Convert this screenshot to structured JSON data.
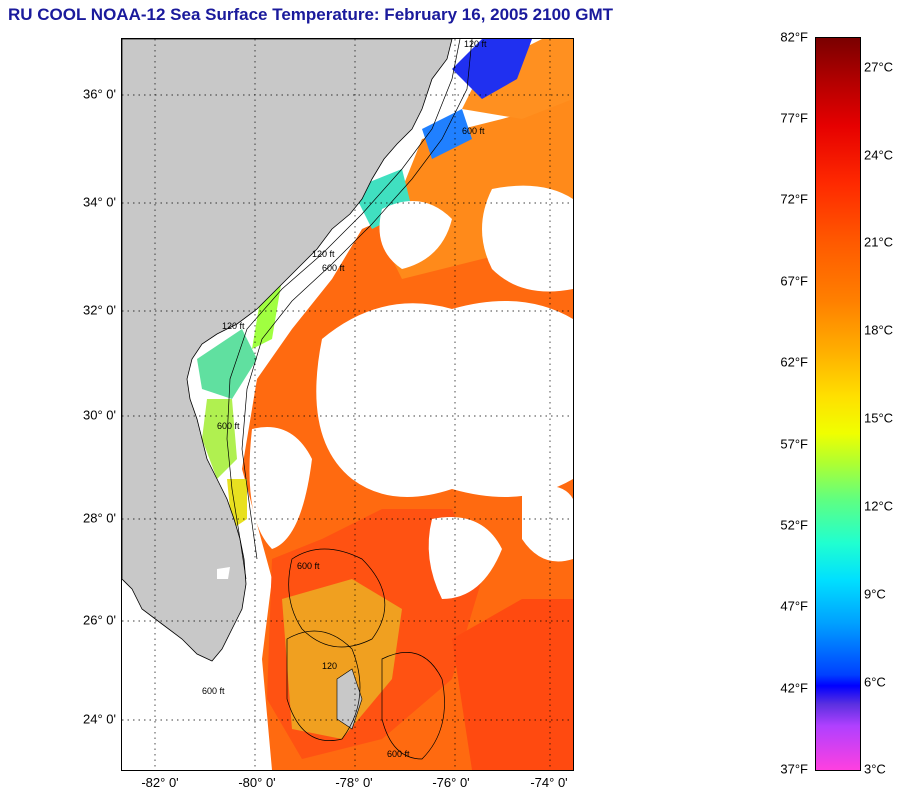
{
  "title": "RU COOL  NOAA-12  Sea Surface Temperature:  February 16, 2005 2100 GMT",
  "map": {
    "lat_labels": [
      "36° 0'",
      "34° 0'",
      "32° 0'",
      "30° 0'",
      "28° 0'",
      "26° 0'",
      "24° 0'"
    ],
    "lon_labels": [
      "-82° 0'",
      "-80° 0'",
      "-78° 0'",
      "-76° 0'",
      "-74° 0'"
    ],
    "contour_labels": [
      "120 ft",
      "600 ft",
      "120 ft",
      "600 ft",
      "120 ft",
      "600 ft",
      "600 ft",
      "120",
      "600 ft",
      "600 ft"
    ],
    "colors": {
      "land": "#c8c8c8",
      "cloud": "#ffffff",
      "coast": "#000000",
      "grid": "#000000"
    }
  },
  "colorbar": {
    "fahrenheit_labels": [
      "82°F",
      "77°F",
      "72°F",
      "67°F",
      "62°F",
      "57°F",
      "52°F",
      "47°F",
      "42°F",
      "37°F"
    ],
    "celsius_labels": [
      "27°C",
      "24°C",
      "21°C",
      "18°C",
      "15°C",
      "12°C",
      "9°C",
      "6°C",
      "3°C"
    ]
  }
}
